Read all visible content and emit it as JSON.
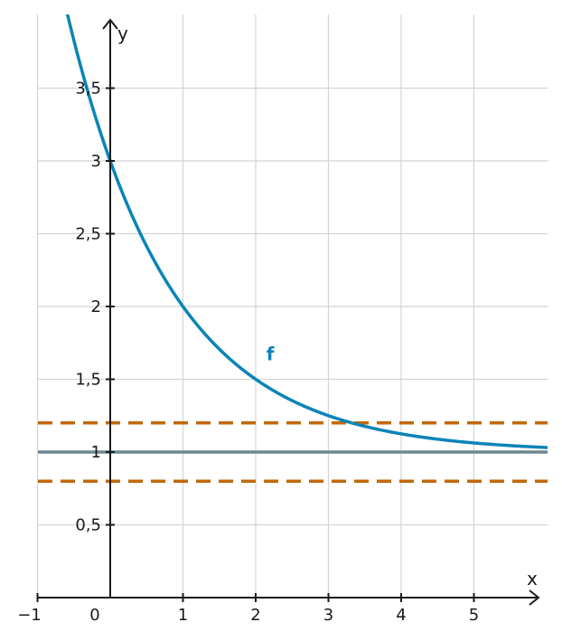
{
  "chart_data": {
    "type": "line",
    "title": "",
    "xlabel": "x",
    "ylabel": "y",
    "xlim": [
      -1,
      6
    ],
    "ylim": [
      0,
      4
    ],
    "grid": true,
    "x_ticks": [
      {
        "value": -1,
        "label": "−1"
      },
      {
        "value": 0,
        "label": "0"
      },
      {
        "value": 1,
        "label": "1"
      },
      {
        "value": 2,
        "label": "2"
      },
      {
        "value": 3,
        "label": "3"
      },
      {
        "value": 4,
        "label": "4"
      },
      {
        "value": 5,
        "label": "5"
      }
    ],
    "y_ticks": [
      {
        "value": 0.5,
        "label": "0,5"
      },
      {
        "value": 1,
        "label": "1"
      },
      {
        "value": 1.5,
        "label": "1,5"
      },
      {
        "value": 2,
        "label": "2"
      },
      {
        "value": 2.5,
        "label": "2,5"
      },
      {
        "value": 3,
        "label": "3"
      },
      {
        "value": 3.5,
        "label": "3,5"
      }
    ],
    "series": [
      {
        "name": "f",
        "function": "1 + 2 * 2^(-x)",
        "color": "#0a84b8",
        "x": [
          -0.6,
          -0.4,
          -0.2,
          0,
          0.25,
          0.5,
          0.75,
          1,
          1.25,
          1.5,
          1.75,
          2,
          2.25,
          2.5,
          2.75,
          3,
          3.25,
          3.5,
          3.75,
          4,
          4.5,
          5,
          5.5,
          6
        ],
        "y": [
          4.03,
          3.64,
          3.3,
          3.0,
          2.68,
          2.41,
          2.19,
          2.0,
          1.84,
          1.71,
          1.59,
          1.5,
          1.42,
          1.35,
          1.3,
          1.25,
          1.21,
          1.18,
          1.15,
          1.125,
          1.088,
          1.0625,
          1.044,
          1.031
        ]
      }
    ],
    "horizontal_lines": [
      {
        "y": 1,
        "color": "#6e8790",
        "style": "solid"
      },
      {
        "y": 1.2,
        "color": "#c0690a",
        "style": "dashed"
      },
      {
        "y": 0.8,
        "color": "#c0690a",
        "style": "dashed"
      }
    ],
    "annotations": [
      {
        "text": "f",
        "x": 2.2,
        "y": 1.63,
        "color": "#0a84b8"
      }
    ]
  }
}
